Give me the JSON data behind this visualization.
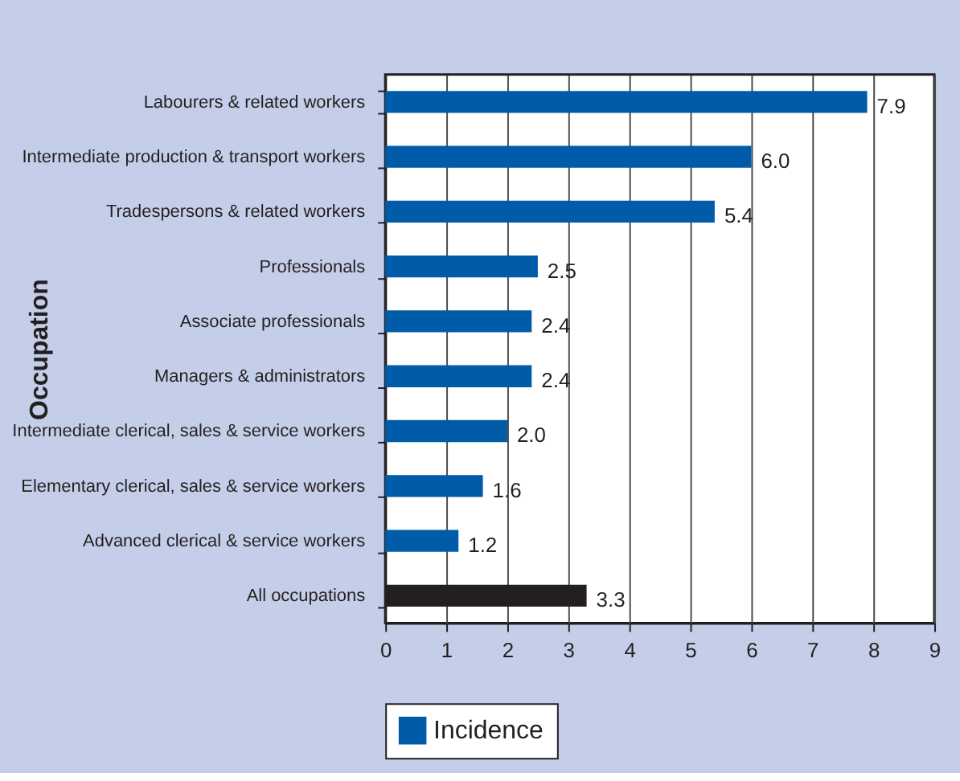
{
  "chart_data": {
    "type": "bar",
    "orientation": "horizontal",
    "ylabel": "Occupation",
    "categories": [
      "Labourers & related workers",
      "Intermediate production & transport workers",
      "Tradespersons & related workers",
      "Professionals",
      "Associate professionals",
      "Managers & administrators",
      "Intermediate clerical, sales & service workers",
      "Elementary clerical, sales & service workers",
      "Advanced clerical & service workers",
      "All occupations"
    ],
    "series": [
      {
        "name": "Incidence",
        "color": "#005ca9",
        "values": [
          7.9,
          6.0,
          5.4,
          2.5,
          2.4,
          2.4,
          2.0,
          1.6,
          1.2,
          3.3
        ],
        "value_labels": [
          "7.9",
          "6.0",
          "5.4",
          "2.5",
          "2.4",
          "2.4",
          "2.0",
          "1.6",
          "1.2",
          "3.3"
        ],
        "colors": [
          "#005ca9",
          "#005ca9",
          "#005ca9",
          "#005ca9",
          "#005ca9",
          "#005ca9",
          "#005ca9",
          "#005ca9",
          "#005ca9",
          "#231f20"
        ]
      }
    ],
    "xlim": [
      0,
      9
    ],
    "xticks": [
      0,
      1,
      2,
      3,
      4,
      5,
      6,
      7,
      8,
      9
    ],
    "grid": "x",
    "legend": "bottom"
  }
}
